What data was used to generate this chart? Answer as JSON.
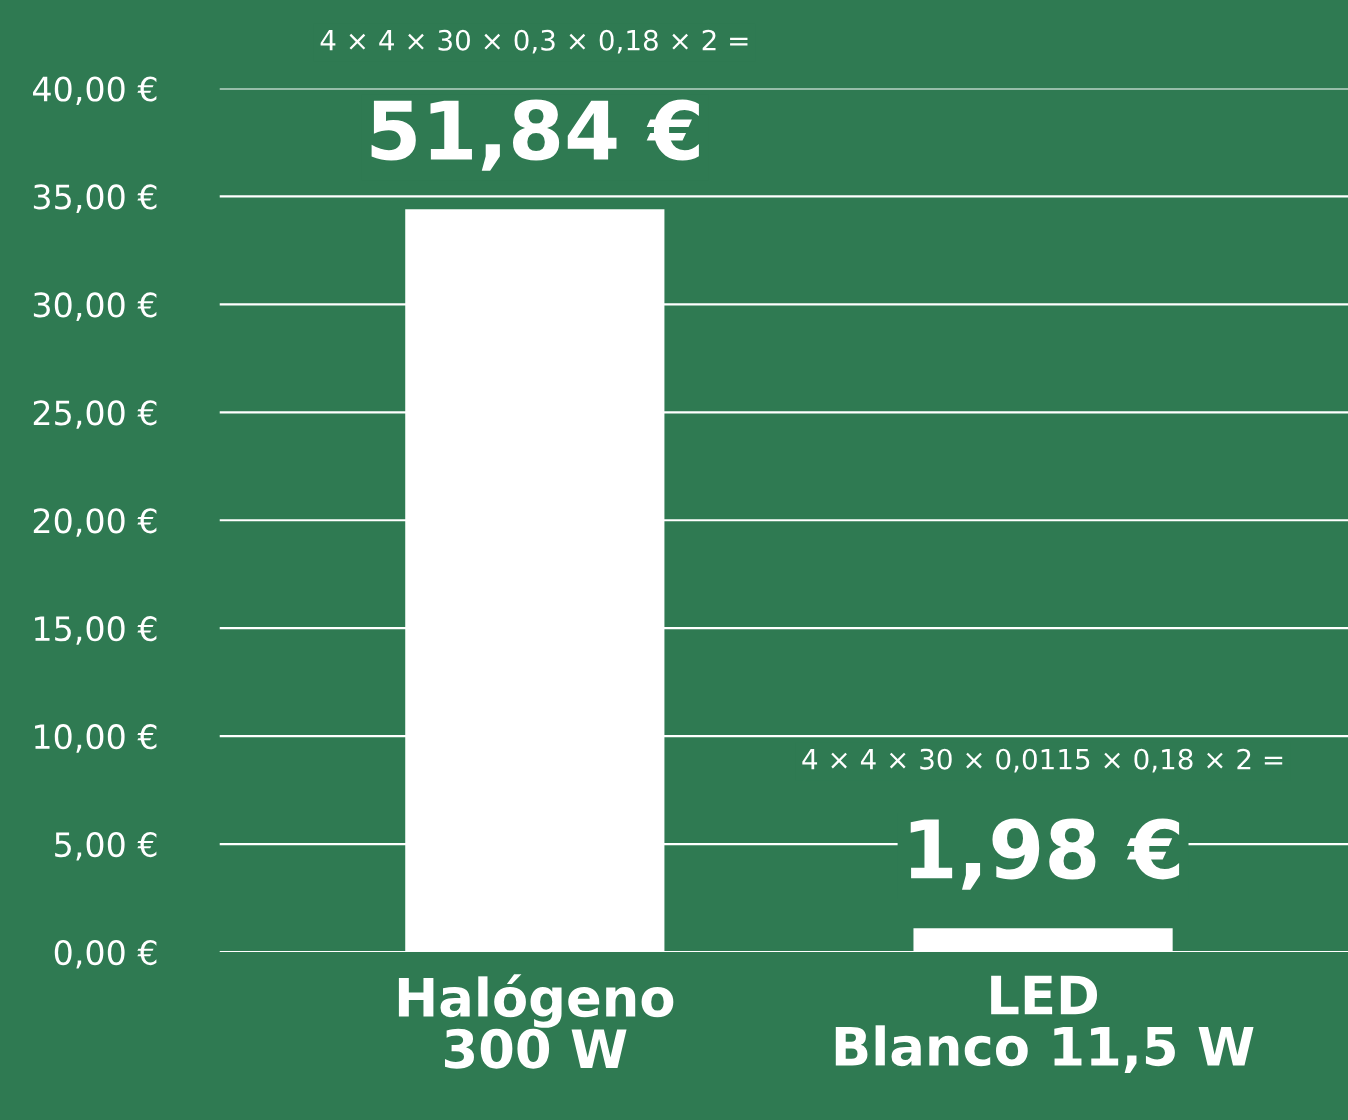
{
  "chart_data": {
    "type": "bar",
    "categories": [
      "Halógeno\n300 W",
      "LED\nBlanco 11,5 W"
    ],
    "values": [
      34.4,
      1.1
    ],
    "color": "#ffffff",
    "annotations": [
      "4 × 4 × 30 × 0,3 × 0,18 × 2 =",
      "51,84 €",
      "4 × 4 × 30 × 0,0115 × 0,18 × 2 =",
      "1,98 €"
    ],
    "ylim": [
      0,
      40
    ],
    "yticks": [
      {
        "value": 0,
        "label": "0,00 €"
      },
      {
        "value": 5,
        "label": "5,00 €"
      },
      {
        "value": 10,
        "label": "10,00 €"
      },
      {
        "value": 15,
        "label": "15,00 €"
      },
      {
        "value": 20,
        "label": "20,00 €"
      },
      {
        "value": 25,
        "label": "25,00 €"
      },
      {
        "value": 30,
        "label": "30,00 €"
      },
      {
        "value": 35,
        "label": "35,00 €"
      },
      {
        "value": 40,
        "label": "40,00 €"
      }
    ],
    "grid": "y",
    "legend": false
  }
}
